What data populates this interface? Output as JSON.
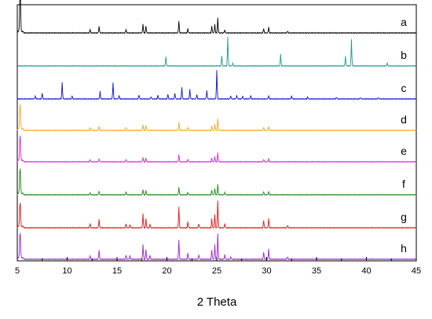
{
  "chart_data": {
    "type": "line",
    "xlabel": "2 Theta",
    "ylabel": "",
    "xlim": [
      5,
      45
    ],
    "x_ticks": [
      5,
      10,
      15,
      20,
      25,
      30,
      35,
      40,
      45
    ],
    "y_ticks_shown": false,
    "grid": false,
    "legend": "right",
    "series": [
      {
        "name": "a",
        "color": "#000000",
        "start_spike": 0.9,
        "peaks": [
          [
            5.3,
            0.9
          ],
          [
            12.3,
            0.12
          ],
          [
            13.2,
            0.22
          ],
          [
            15.9,
            0.12
          ],
          [
            17.6,
            0.3
          ],
          [
            17.9,
            0.22
          ],
          [
            21.2,
            0.4
          ],
          [
            22.1,
            0.14
          ],
          [
            24.5,
            0.22
          ],
          [
            24.8,
            0.3
          ],
          [
            25.1,
            0.5
          ],
          [
            25.8,
            0.1
          ],
          [
            29.7,
            0.15
          ],
          [
            30.2,
            0.2
          ],
          [
            32.1,
            0.06
          ]
        ]
      },
      {
        "name": "b",
        "color": "#1f9a8e",
        "start_spike": 0,
        "peaks": [
          [
            19.9,
            0.3
          ],
          [
            25.5,
            0.35
          ],
          [
            26.1,
            0.98
          ],
          [
            26.6,
            0.1
          ],
          [
            31.4,
            0.4
          ],
          [
            37.9,
            0.32
          ],
          [
            38.5,
            0.88
          ],
          [
            42.1,
            0.1
          ]
        ]
      },
      {
        "name": "c",
        "color": "#1010e0",
        "start_spike": 0,
        "peaks": [
          [
            6.8,
            0.1
          ],
          [
            7.5,
            0.2
          ],
          [
            9.5,
            0.55
          ],
          [
            10.5,
            0.1
          ],
          [
            13.3,
            0.25
          ],
          [
            14.6,
            0.55
          ],
          [
            15.2,
            0.12
          ],
          [
            17.2,
            0.14
          ],
          [
            18.4,
            0.08
          ],
          [
            19.1,
            0.12
          ],
          [
            20.1,
            0.16
          ],
          [
            20.8,
            0.2
          ],
          [
            21.5,
            0.38
          ],
          [
            22.3,
            0.32
          ],
          [
            23.0,
            0.15
          ],
          [
            24.0,
            0.28
          ],
          [
            25.0,
            0.98
          ],
          [
            26.4,
            0.1
          ],
          [
            27.0,
            0.12
          ],
          [
            27.6,
            0.1
          ],
          [
            28.4,
            0.12
          ],
          [
            30.2,
            0.12
          ],
          [
            32.5,
            0.1
          ],
          [
            34.1,
            0.06
          ],
          [
            37.0,
            0.06
          ],
          [
            39.4,
            0.05
          ],
          [
            41.2,
            0.05
          ]
        ]
      },
      {
        "name": "d",
        "color": "#f5a623",
        "start_spike": 0.9,
        "peaks": [
          [
            12.3,
            0.1
          ],
          [
            13.2,
            0.14
          ],
          [
            15.9,
            0.1
          ],
          [
            17.6,
            0.2
          ],
          [
            17.9,
            0.16
          ],
          [
            21.2,
            0.28
          ],
          [
            22.1,
            0.1
          ],
          [
            24.5,
            0.14
          ],
          [
            24.8,
            0.22
          ],
          [
            25.1,
            0.38
          ],
          [
            29.7,
            0.1
          ],
          [
            30.2,
            0.14
          ]
        ]
      },
      {
        "name": "e",
        "color": "#e020e0",
        "start_spike": 0.9,
        "peaks": [
          [
            12.3,
            0.08
          ],
          [
            13.2,
            0.1
          ],
          [
            15.9,
            0.08
          ],
          [
            17.6,
            0.15
          ],
          [
            17.9,
            0.12
          ],
          [
            21.2,
            0.25
          ],
          [
            22.1,
            0.08
          ],
          [
            24.5,
            0.12
          ],
          [
            24.8,
            0.18
          ],
          [
            25.1,
            0.3
          ],
          [
            29.7,
            0.08
          ],
          [
            30.2,
            0.12
          ]
        ]
      },
      {
        "name": "f",
        "color": "#1a8a1a",
        "start_spike": 0.9,
        "peaks": [
          [
            12.3,
            0.08
          ],
          [
            13.2,
            0.12
          ],
          [
            15.9,
            0.1
          ],
          [
            17.6,
            0.18
          ],
          [
            17.9,
            0.14
          ],
          [
            21.2,
            0.26
          ],
          [
            22.1,
            0.08
          ],
          [
            24.5,
            0.15
          ],
          [
            24.8,
            0.22
          ],
          [
            25.1,
            0.35
          ],
          [
            25.8,
            0.08
          ],
          [
            29.7,
            0.1
          ],
          [
            30.2,
            0.12
          ]
        ]
      },
      {
        "name": "g",
        "color": "#ee1111",
        "start_spike": 0.85,
        "peaks": [
          [
            12.3,
            0.15
          ],
          [
            13.2,
            0.28
          ],
          [
            15.9,
            0.14
          ],
          [
            16.3,
            0.1
          ],
          [
            17.6,
            0.48
          ],
          [
            17.9,
            0.3
          ],
          [
            18.3,
            0.12
          ],
          [
            21.2,
            0.7
          ],
          [
            22.1,
            0.2
          ],
          [
            23.2,
            0.14
          ],
          [
            24.5,
            0.3
          ],
          [
            24.8,
            0.45
          ],
          [
            25.1,
            0.9
          ],
          [
            25.8,
            0.14
          ],
          [
            29.7,
            0.25
          ],
          [
            30.2,
            0.32
          ],
          [
            32.1,
            0.08
          ]
        ]
      },
      {
        "name": "h",
        "color": "#9b22d8",
        "start_spike": 0.9,
        "peaks": [
          [
            12.3,
            0.12
          ],
          [
            13.2,
            0.3
          ],
          [
            15.9,
            0.14
          ],
          [
            16.3,
            0.12
          ],
          [
            17.6,
            0.5
          ],
          [
            17.9,
            0.32
          ],
          [
            18.3,
            0.14
          ],
          [
            21.2,
            0.65
          ],
          [
            22.1,
            0.2
          ],
          [
            23.2,
            0.16
          ],
          [
            24.5,
            0.3
          ],
          [
            24.8,
            0.5
          ],
          [
            25.1,
            0.85
          ],
          [
            25.8,
            0.16
          ],
          [
            26.4,
            0.08
          ],
          [
            29.7,
            0.24
          ],
          [
            30.2,
            0.35
          ],
          [
            32.1,
            0.08
          ]
        ]
      }
    ]
  }
}
